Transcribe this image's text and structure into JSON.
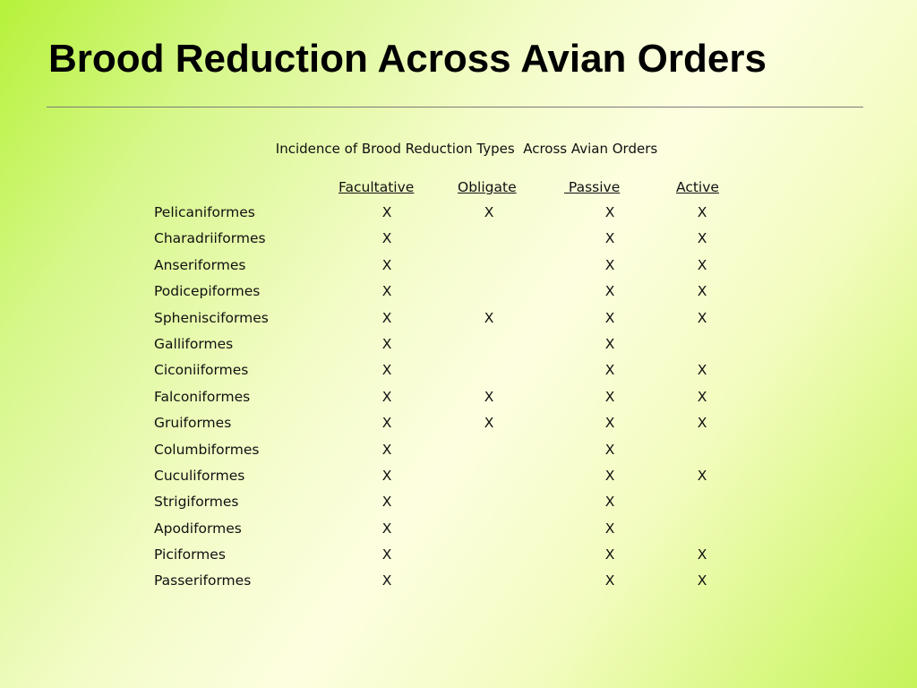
{
  "slide": {
    "title": "Brood Reduction Across Avian Orders",
    "caption": "Incidence of Brood Reduction Types  Across Avian Orders"
  },
  "table": {
    "headers": {
      "facultative": "Facultative",
      "obligate": "Obligate",
      "passive": " Passive",
      "active": "Active"
    },
    "rows": [
      {
        "order": "Pelicaniformes",
        "facultative": "X",
        "obligate": "X",
        "passive": "X",
        "active": "X"
      },
      {
        "order": "Charadriiformes",
        "facultative": "X",
        "obligate": "",
        "passive": "X",
        "active": "X"
      },
      {
        "order": "Anseriformes",
        "facultative": "X",
        "obligate": "",
        "passive": "X",
        "active": "X"
      },
      {
        "order": "Podicepiformes",
        "facultative": "X",
        "obligate": "",
        "passive": "X",
        "active": "X"
      },
      {
        "order": "Sphenisciformes",
        "facultative": "X",
        "obligate": "X",
        "passive": "X",
        "active": "X"
      },
      {
        "order": "Galliformes",
        "facultative": "X",
        "obligate": "",
        "passive": "X",
        "active": ""
      },
      {
        "order": "Ciconiiformes",
        "facultative": "X",
        "obligate": "",
        "passive": "X",
        "active": "X"
      },
      {
        "order": "Falconiformes",
        "facultative": "X",
        "obligate": "X",
        "passive": "X",
        "active": "X"
      },
      {
        "order": "Gruiformes",
        "facultative": "X",
        "obligate": "X",
        "passive": "X",
        "active": "X"
      },
      {
        "order": "Columbiformes",
        "facultative": "X",
        "obligate": "",
        "passive": "X",
        "active": ""
      },
      {
        "order": "Cuculiformes",
        "facultative": "X",
        "obligate": "",
        "passive": "X",
        "active": "X"
      },
      {
        "order": "Strigiformes",
        "facultative": "X",
        "obligate": "",
        "passive": "X",
        "active": ""
      },
      {
        "order": "Apodiformes",
        "facultative": "X",
        "obligate": "",
        "passive": "X",
        "active": ""
      },
      {
        "order": "Piciformes",
        "facultative": "X",
        "obligate": "",
        "passive": "X",
        "active": "X"
      },
      {
        "order": "Passeriformes",
        "facultative": "X",
        "obligate": "",
        "passive": "X",
        "active": "X"
      }
    ]
  }
}
